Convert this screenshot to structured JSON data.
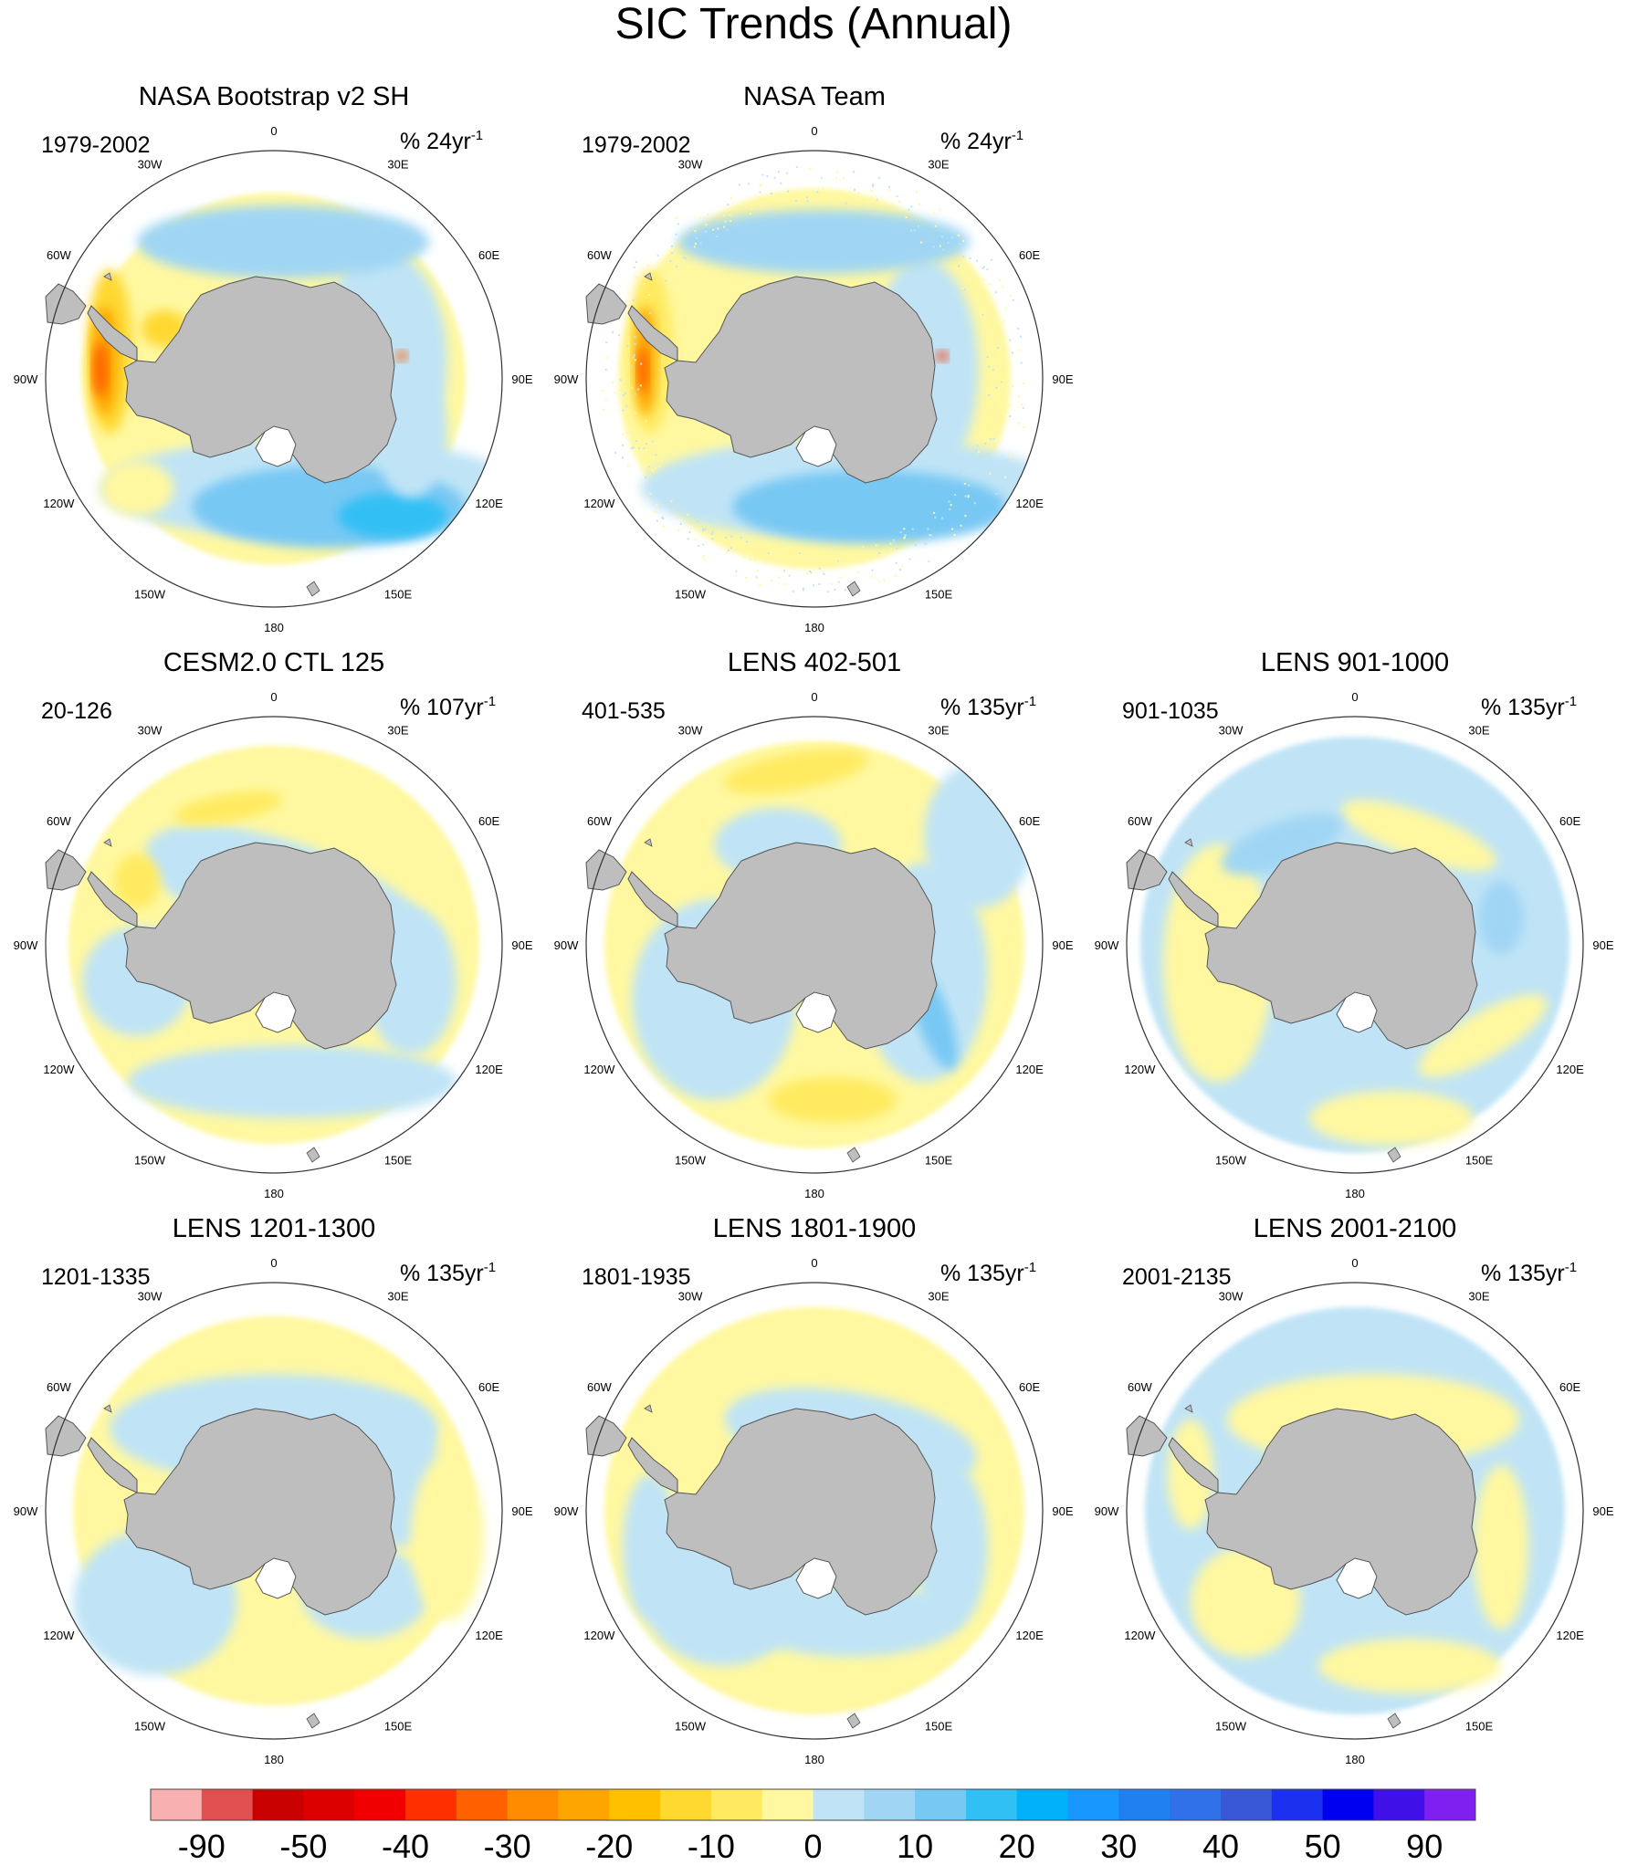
{
  "figure": {
    "title": "SIC Trends (Annual)"
  },
  "grid_labels": {
    "lon": [
      "0",
      "30E",
      "60E",
      "90E",
      "120E",
      "150E",
      "180",
      "150W",
      "120W",
      "90W",
      "60W",
      "30W"
    ]
  },
  "panels": [
    {
      "title": "NASA Bootstrap v2 SH",
      "period": "1979-2002",
      "units": "% 24yr",
      "units_sup": "-1",
      "pattern": "obs_bootstrap"
    },
    {
      "title": "NASA Team",
      "period": "1979-2002",
      "units": "% 24yr",
      "units_sup": "-1",
      "pattern": "obs_team"
    },
    null,
    {
      "title": "CESM2.0 CTL 125",
      "period": "20-126",
      "units": "% 107yr",
      "units_sup": "-1",
      "pattern": "model_a"
    },
    {
      "title": "LENS 402-501",
      "period": "401-535",
      "units": "% 135yr",
      "units_sup": "-1",
      "pattern": "model_b"
    },
    {
      "title": "LENS 901-1000",
      "period": "901-1035",
      "units": "% 135yr",
      "units_sup": "-1",
      "pattern": "model_c"
    },
    {
      "title": "LENS 1201-1300",
      "period": "1201-1335",
      "units": "% 135yr",
      "units_sup": "-1",
      "pattern": "model_d"
    },
    {
      "title": "LENS 1801-1900",
      "period": "1801-1935",
      "units": "% 135yr",
      "units_sup": "-1",
      "pattern": "model_e"
    },
    {
      "title": "LENS 2001-2100",
      "period": "2001-2135",
      "units": "% 135yr",
      "units_sup": "-1",
      "pattern": "model_f"
    }
  ],
  "colorbar": {
    "colors": [
      "#f8b0b0",
      "#e05050",
      "#c80000",
      "#dc0000",
      "#f00000",
      "#ff3000",
      "#ff6000",
      "#ff8c00",
      "#ffa500",
      "#ffc000",
      "#ffd830",
      "#ffea60",
      "#fff8a0",
      "#c0e4f6",
      "#a0d6f4",
      "#78c8f4",
      "#30c0f4",
      "#00b0f8",
      "#1898ff",
      "#2080f0",
      "#3070e8",
      "#3858d8",
      "#1c30f0",
      "#0000f0",
      "#4010e8",
      "#8020f0"
    ],
    "labels": [
      "-90",
      "-50",
      "-40",
      "-30",
      "-20",
      "-10",
      "0",
      "10",
      "20",
      "30",
      "40",
      "50",
      "90"
    ]
  },
  "colors": {
    "land": "#bebebe",
    "positive_weak": "#fff8a0",
    "negative_weak": "#c0e4f6"
  }
}
